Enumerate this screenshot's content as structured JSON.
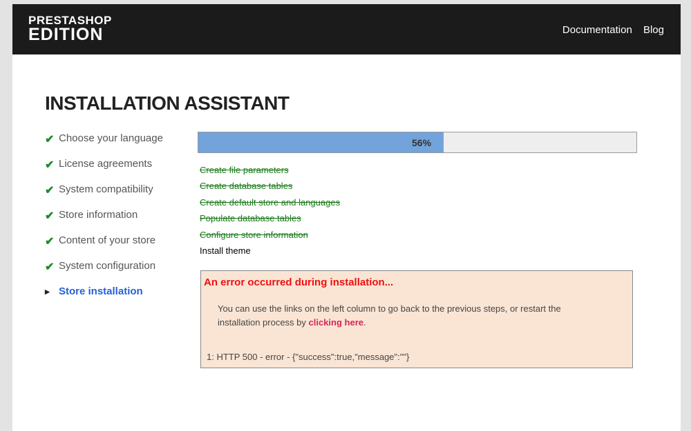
{
  "header": {
    "logo_line1": "PRESTASHOP",
    "logo_line2": "EDITION",
    "nav": [
      "Documentation",
      "Blog"
    ]
  },
  "title": "INSTALLATION ASSISTANT",
  "steps": [
    {
      "label": "Choose your language",
      "status": "done"
    },
    {
      "label": "License agreements",
      "status": "done"
    },
    {
      "label": "System compatibility",
      "status": "done"
    },
    {
      "label": "Store information",
      "status": "done"
    },
    {
      "label": "Content of your store",
      "status": "done"
    },
    {
      "label": "System configuration",
      "status": "done"
    },
    {
      "label": "Store installation",
      "status": "current"
    }
  ],
  "progress": {
    "percent": 56,
    "label": "56%"
  },
  "tasks": [
    {
      "label": "Create file parameters",
      "status": "done"
    },
    {
      "label": "Create database tables",
      "status": "done"
    },
    {
      "label": "Create default store and languages",
      "status": "done"
    },
    {
      "label": "Populate database tables",
      "status": "done"
    },
    {
      "label": "Configure store information",
      "status": "done"
    },
    {
      "label": "Install theme",
      "status": "error"
    }
  ],
  "error": {
    "title": "An error occurred during installation...",
    "message": "You can use the links on the left column to go back to the previous steps, or restart the installation process by ",
    "link": "clicking here",
    "after": ".",
    "detail": "1: HTTP 500 - error - {\"success\":true,\"message\":\"\"}"
  }
}
